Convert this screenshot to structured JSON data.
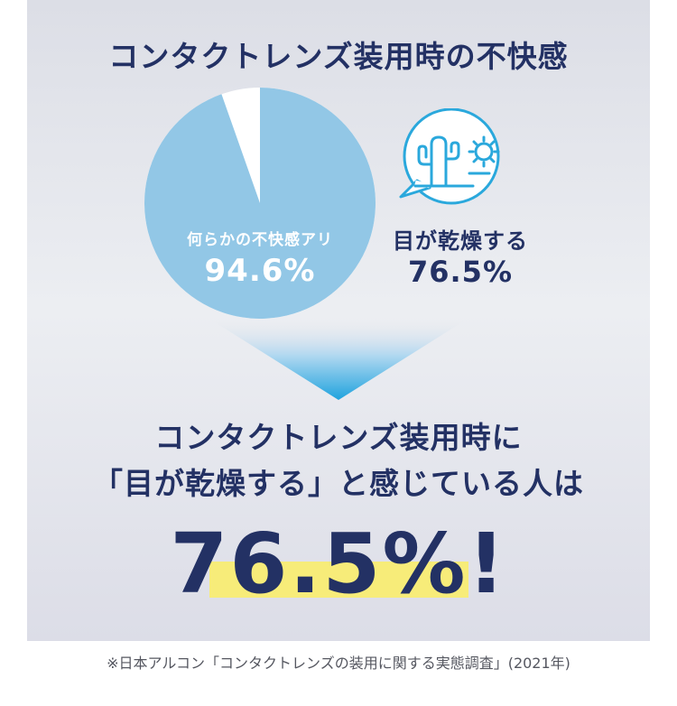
{
  "heading": "コンタクトレンズ装用時の不快感",
  "pie": {
    "label": "何らかの不快感アリ",
    "value_text": "94.6%",
    "value": 94.6,
    "slice_color": "#92c7e6",
    "remainder_color": "#ffffff"
  },
  "dry_eye": {
    "label": "目が乾燥する",
    "value_text": "76.5%",
    "icon": "cactus-sun-icon",
    "icon_color": "#2aa8dc"
  },
  "result": {
    "line1": "コンタクトレンズ装用時に",
    "line2": "「目が乾燥する」と感じている人は",
    "big_number": "76.5%!",
    "highlight_color": "#f7ec79"
  },
  "footnote": "※日本アルコン「コンタクトレンズの装用に関する実態調査」(2021年)"
}
